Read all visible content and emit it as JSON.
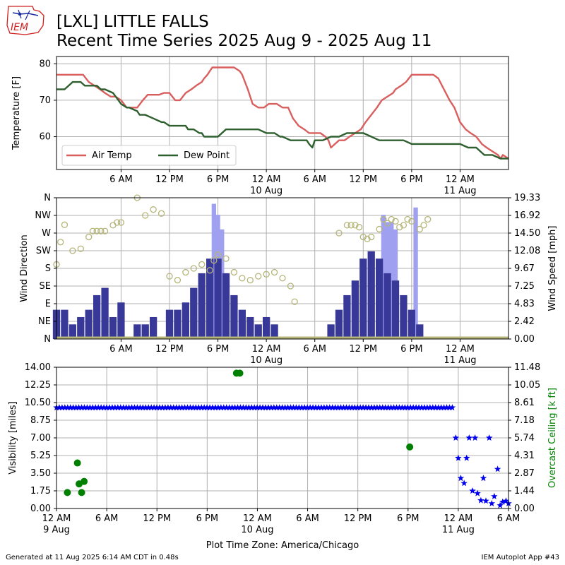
{
  "header": {
    "logo_text": "IEM",
    "title_line1": "[LXL] LITTLE FALLS",
    "title_line2": "Recent Time Series 2025 Aug 9 - 2025 Aug 11"
  },
  "footer": {
    "generated": "Generated at 11 Aug 2025 6:14 AM CDT in 0.48s",
    "app": "IEM Autoplot App #43"
  },
  "chart_data": [
    {
      "type": "line",
      "panel": "temperature",
      "ylabel": "Temperature [F]",
      "yticks": [
        60,
        70,
        80
      ],
      "ylim": [
        51,
        82
      ],
      "x_range_hours": [
        -2,
        54
      ],
      "xticks": [
        {
          "h": 6,
          "label": "6 AM",
          "sub": ""
        },
        {
          "h": 12,
          "label": "12 PM",
          "sub": ""
        },
        {
          "h": 18,
          "label": "6 PM",
          "sub": ""
        },
        {
          "h": 24,
          "label": "12 AM",
          "sub": "10 Aug"
        },
        {
          "h": 30,
          "label": "6 AM",
          "sub": ""
        },
        {
          "h": 36,
          "label": "12 PM",
          "sub": ""
        },
        {
          "h": 42,
          "label": "6 PM",
          "sub": ""
        },
        {
          "h": 48,
          "label": "12 AM",
          "sub": "11 Aug"
        }
      ],
      "legend": "lower-left",
      "grid": true,
      "series": [
        {
          "name": "Air Temp",
          "color": "#d95f5f",
          "x": [
            -2,
            1.3,
            2,
            2.7,
            3.4,
            4,
            4.7,
            5.3,
            6,
            6.7,
            7.3,
            8,
            8.7,
            9.3,
            10,
            10.7,
            11.3,
            12,
            12.7,
            13.3,
            14,
            14.7,
            15.3,
            16,
            16.3,
            16.7,
            17,
            17.3,
            18,
            19,
            20,
            20.7,
            21,
            21.7,
            22.3,
            23,
            23.7,
            24.3,
            25.3,
            26,
            26.7,
            27.3,
            28,
            28.7,
            29.3,
            30,
            30.7,
            31.3,
            31.7,
            32,
            33,
            33.7,
            34.3,
            35,
            35.7,
            36.3,
            37,
            37.7,
            38.3,
            39,
            39.7,
            40,
            40.7,
            41.3,
            42,
            42.7,
            43.3,
            44,
            44.7,
            45.3,
            46,
            46.7,
            47.3,
            48,
            48.7,
            49.3,
            50,
            50.7,
            51.3,
            52,
            52.7,
            53,
            53.3,
            54
          ],
          "y": [
            77,
            77,
            75,
            74,
            73,
            72,
            71,
            71,
            70,
            68,
            68,
            68,
            70,
            71.5,
            71.5,
            71.5,
            72,
            72,
            70,
            70,
            72,
            73,
            74,
            75,
            76,
            77,
            78,
            79,
            79,
            79,
            79,
            78,
            77,
            73,
            69,
            68,
            68,
            69,
            69,
            68,
            68,
            65,
            63,
            62,
            61,
            61,
            61,
            60,
            59,
            57,
            59,
            59,
            60,
            61,
            62,
            64,
            66,
            68,
            70,
            71,
            72,
            73,
            74,
            75,
            77,
            77,
            77,
            77,
            77,
            76,
            73,
            70,
            68,
            64,
            62,
            61,
            60,
            58,
            57,
            56,
            55,
            54,
            55,
            54
          ]
        },
        {
          "name": "Dew Point",
          "color": "#2e5f2e",
          "x": [
            -2,
            -1,
            0,
            1,
            1.5,
            2,
            3,
            3.5,
            4,
            5,
            6,
            6.7,
            7,
            8,
            8.3,
            9,
            10,
            11,
            11.3,
            12,
            13,
            14,
            14.3,
            15,
            15.7,
            16,
            16.3,
            17,
            18,
            19,
            19.7,
            20,
            21,
            22,
            23,
            24,
            25,
            25.7,
            26,
            27,
            28,
            29,
            29.3,
            29.7,
            30,
            31,
            32,
            33,
            34,
            35,
            36,
            37,
            38,
            39,
            40,
            41,
            42,
            43,
            44,
            45,
            46,
            47,
            48,
            49,
            50,
            51,
            52,
            53,
            54
          ],
          "y": [
            73,
            73,
            75,
            75,
            74,
            74,
            74,
            73,
            73,
            72,
            69,
            68,
            68,
            67,
            66,
            66,
            65,
            64,
            64,
            63,
            63,
            63,
            62,
            62,
            61,
            61,
            60,
            60,
            60,
            62,
            62,
            62,
            62,
            62,
            62,
            61,
            61,
            60,
            60,
            59,
            59,
            59,
            58,
            57,
            59,
            59,
            60,
            60,
            61,
            61,
            61,
            60,
            59,
            59,
            59,
            59,
            58,
            58,
            58,
            58,
            58,
            58,
            58,
            57,
            57,
            55,
            55,
            54,
            54
          ]
        }
      ]
    },
    {
      "type": "bar",
      "panel": "wind",
      "ylabel": "Wind Direction",
      "ylabel_right": "Wind Speed [mph]",
      "dir_ticks": [
        "N",
        "NE",
        "E",
        "SE",
        "S",
        "SW",
        "W",
        "NW",
        "N"
      ],
      "speed_ticks": [
        "0.00",
        "2.42",
        "4.83",
        "7.25",
        "9.67",
        "12.08",
        "14.50",
        "16.92",
        "19.33"
      ],
      "speed_max": 19.33,
      "grid": true,
      "series": [
        {
          "name": "Wind Speed",
          "color": "#383898",
          "x": [
            -2,
            -1,
            0,
            1,
            2,
            3,
            4,
            5,
            6,
            7,
            8,
            9,
            10,
            11,
            12,
            13,
            14,
            15,
            16,
            17,
            18,
            19,
            20,
            21,
            22,
            23,
            24,
            25,
            26,
            27,
            28,
            29,
            30,
            31,
            32,
            33,
            34,
            35,
            36,
            37,
            38,
            39,
            40,
            41,
            42,
            43,
            44,
            45,
            46,
            47,
            48,
            49,
            50,
            51,
            52,
            53,
            54
          ],
          "values": [
            4,
            4,
            2,
            3,
            4,
            6,
            7,
            3,
            5,
            0,
            2,
            2,
            3,
            0,
            4,
            4,
            5,
            7,
            9,
            11,
            11,
            9,
            6,
            4,
            3,
            2,
            3,
            2,
            0,
            0,
            0,
            0,
            0,
            0,
            2,
            4,
            6,
            8,
            11,
            12,
            11,
            9,
            8,
            6,
            4,
            2,
            0,
            0,
            0,
            0,
            0,
            0,
            0,
            0,
            0,
            0,
            0
          ]
        },
        {
          "name": "Wind Gust",
          "color": "#a0a0f0",
          "x": [
            17.5,
            18,
            18.5,
            38.5,
            39,
            39.5,
            40,
            42.5
          ],
          "values": [
            18.5,
            17,
            15,
            17,
            16,
            16,
            15,
            18
          ]
        },
        {
          "name": "Wind Direction",
          "color": "#b5b57a",
          "x": [
            -2,
            -1.5,
            -1,
            0,
            1,
            2,
            2.5,
            3,
            3.5,
            4,
            5,
            5.5,
            6,
            8,
            9,
            10,
            11,
            12,
            13,
            14,
            15,
            16,
            17,
            17.5,
            18,
            19,
            20,
            21,
            22,
            23,
            24,
            25,
            26,
            27,
            27.5,
            33,
            34,
            34.5,
            35,
            35.5,
            36,
            36.5,
            37,
            38,
            38.5,
            39,
            39.5,
            40,
            40.5,
            41,
            41.5,
            42,
            43,
            43.5,
            44
          ],
          "values": [
            190,
            247,
            291,
            225,
            230,
            260,
            275,
            275,
            275,
            275,
            290,
            297,
            297,
            360,
            315,
            330,
            320,
            160,
            150,
            170,
            180,
            190,
            175,
            200,
            215,
            205,
            170,
            155,
            150,
            160,
            165,
            170,
            155,
            135,
            95,
            270,
            290,
            290,
            290,
            285,
            260,
            255,
            260,
            280,
            305,
            295,
            305,
            300,
            285,
            290,
            305,
            300,
            280,
            290,
            305
          ]
        }
      ]
    },
    {
      "type": "scatter",
      "panel": "visibility",
      "ylabel": "Visibility [miles]",
      "ylabel_right": "Overcast Ceiling [k ft]",
      "vis_ticks": [
        "0.00",
        "1.75",
        "3.50",
        "5.25",
        "7.00",
        "8.75",
        "10.50",
        "12.25",
        "14.00"
      ],
      "vis_max": 14,
      "ceil_ticks": [
        "0.00",
        "1.44",
        "2.87",
        "4.31",
        "5.74",
        "7.18",
        "8.61",
        "10.05",
        "11.48"
      ],
      "ceil_max": 11.48,
      "x_range_hours": [
        0,
        54
      ],
      "xticks": [
        {
          "h": 0,
          "label": "12 AM",
          "sub": "9 Aug"
        },
        {
          "h": 6,
          "label": "6 AM",
          "sub": ""
        },
        {
          "h": 12,
          "label": "12 PM",
          "sub": ""
        },
        {
          "h": 18,
          "label": "6 PM",
          "sub": ""
        },
        {
          "h": 24,
          "label": "12 AM",
          "sub": "10 Aug"
        },
        {
          "h": 30,
          "label": "6 AM",
          "sub": ""
        },
        {
          "h": 36,
          "label": "12 PM",
          "sub": ""
        },
        {
          "h": 42,
          "label": "6 PM",
          "sub": ""
        },
        {
          "h": 48,
          "label": "12 AM",
          "sub": "11 Aug"
        },
        {
          "h": 54,
          "label": "6 AM",
          "sub": ""
        }
      ],
      "xlabel": "Plot Time Zone: America/Chicago",
      "grid": true,
      "visibility": {
        "name": "Visibility",
        "color": "#0000ee",
        "value_10": 10,
        "x_start": 0,
        "x_end": 47.5,
        "tail_x": [
          47.7,
          48,
          48.3,
          48.7,
          49,
          49.3,
          49.7,
          50,
          50.3,
          50.7,
          51,
          51.3,
          51.7,
          52,
          52.3,
          52.7,
          53,
          53.3,
          53.7,
          54
        ],
        "tail_y": [
          7,
          5,
          3,
          2.5,
          5,
          7,
          1.75,
          7,
          1.5,
          0.8,
          3,
          0.75,
          7,
          0.5,
          1.2,
          3.9,
          0.3,
          0.65,
          0.75,
          0.5
        ]
      },
      "ceiling": {
        "name": "Overcast Ceiling",
        "color": "#008000",
        "x": [
          1.3,
          2.5,
          2.7,
          3,
          3.3,
          21.5,
          21.9,
          42.2
        ],
        "y": [
          1.3,
          3.7,
          2.0,
          1.3,
          2.2,
          11.0,
          11.0,
          5.0
        ]
      }
    }
  ]
}
